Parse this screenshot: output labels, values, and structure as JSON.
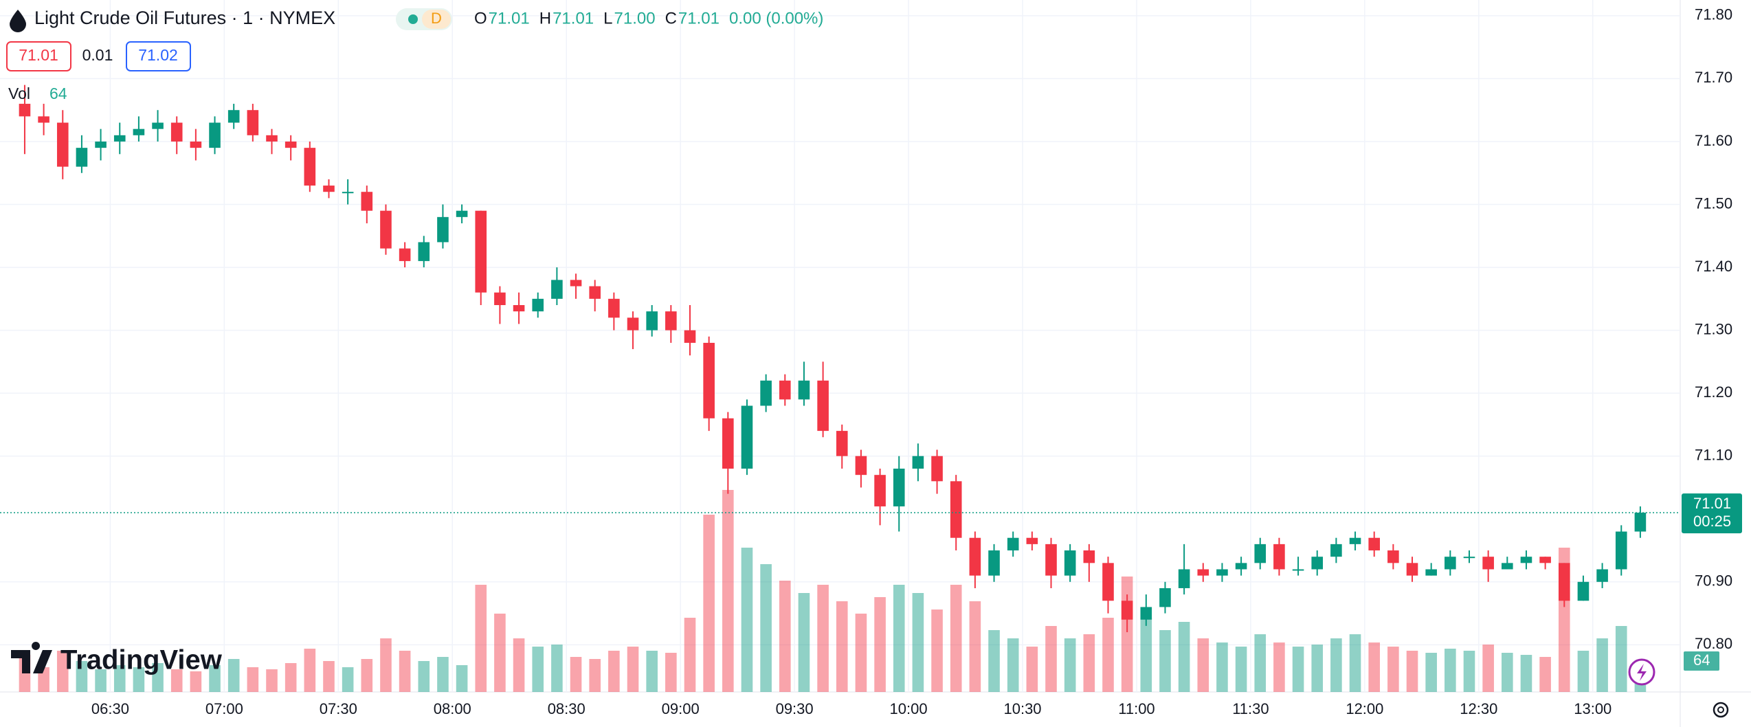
{
  "header": {
    "title": "Light Crude Oil Futures · 1 · NYMEX",
    "interval_badge": "D",
    "ohlc": [
      {
        "k": "O",
        "v": "71.01"
      },
      {
        "k": "H",
        "v": "71.01"
      },
      {
        "k": "L",
        "v": "71.00"
      },
      {
        "k": "C",
        "v": "71.01"
      }
    ],
    "change": "0.00 (0.00%)",
    "bid": "71.01",
    "spread": "0.01",
    "ask": "71.02"
  },
  "watermark": "TradingView",
  "chart_data": {
    "type": "candlestick",
    "up_color": "#089981",
    "down_color": "#f23645",
    "grid": true,
    "x": [
      "06:05",
      "06:10",
      "06:15",
      "06:20",
      "06:25",
      "06:30",
      "06:35",
      "06:40",
      "06:45",
      "06:50",
      "06:55",
      "07:00",
      "07:05",
      "07:10",
      "07:15",
      "07:20",
      "07:25",
      "07:30",
      "07:35",
      "07:40",
      "07:45",
      "07:50",
      "07:55",
      "08:00",
      "08:05",
      "08:10",
      "08:15",
      "08:20",
      "08:25",
      "08:30",
      "08:35",
      "08:40",
      "08:45",
      "08:50",
      "08:55",
      "09:00",
      "09:05",
      "09:10",
      "09:15",
      "09:20",
      "09:25",
      "09:30",
      "09:35",
      "09:40",
      "09:45",
      "09:50",
      "09:55",
      "10:00",
      "10:05",
      "10:10",
      "10:15",
      "10:20",
      "10:25",
      "10:30",
      "10:35",
      "10:40",
      "10:45",
      "10:50",
      "10:55",
      "11:00",
      "11:05",
      "11:10",
      "11:15",
      "11:20",
      "11:25",
      "11:30",
      "11:35",
      "11:40",
      "11:45",
      "11:50",
      "11:55",
      "12:00",
      "12:05",
      "12:10",
      "12:15",
      "12:20",
      "12:25",
      "12:30",
      "12:35",
      "12:40",
      "12:45",
      "12:50",
      "12:55",
      "13:00",
      "13:05",
      "13:10"
    ],
    "open": [
      71.66,
      71.64,
      71.63,
      71.56,
      71.59,
      71.6,
      71.61,
      71.62,
      71.63,
      71.6,
      71.59,
      71.63,
      71.65,
      71.61,
      71.6,
      71.59,
      71.53,
      71.52,
      71.52,
      71.49,
      71.43,
      71.41,
      71.44,
      71.48,
      71.49,
      71.36,
      71.34,
      71.33,
      71.35,
      71.38,
      71.37,
      71.35,
      71.32,
      71.3,
      71.33,
      71.3,
      71.28,
      71.16,
      71.08,
      71.18,
      71.22,
      71.19,
      71.22,
      71.14,
      71.1,
      71.07,
      71.02,
      71.08,
      71.1,
      71.06,
      70.97,
      70.91,
      70.95,
      70.97,
      70.96,
      70.91,
      70.95,
      70.93,
      70.87,
      70.84,
      70.86,
      70.89,
      70.92,
      70.91,
      70.92,
      70.93,
      70.96,
      70.92,
      70.92,
      70.94,
      70.96,
      70.97,
      70.95,
      70.93,
      70.91,
      70.92,
      70.94,
      70.94,
      70.92,
      70.93,
      70.94,
      70.93,
      70.87,
      70.9,
      70.92,
      70.98
    ],
    "high": [
      71.69,
      71.66,
      71.65,
      71.61,
      71.62,
      71.63,
      71.64,
      71.65,
      71.64,
      71.62,
      71.64,
      71.66,
      71.66,
      71.62,
      71.61,
      71.6,
      71.54,
      71.54,
      71.53,
      71.5,
      71.44,
      71.45,
      71.5,
      71.5,
      71.49,
      71.37,
      71.36,
      71.36,
      71.4,
      71.39,
      71.38,
      71.36,
      71.33,
      71.34,
      71.34,
      71.34,
      71.29,
      71.17,
      71.19,
      71.23,
      71.23,
      71.25,
      71.25,
      71.15,
      71.11,
      71.08,
      71.1,
      71.12,
      71.11,
      71.07,
      70.98,
      70.96,
      70.98,
      70.98,
      70.97,
      70.96,
      70.96,
      70.94,
      70.88,
      70.88,
      70.9,
      70.96,
      70.93,
      70.93,
      70.94,
      70.97,
      70.97,
      70.94,
      70.95,
      70.97,
      70.98,
      70.98,
      70.96,
      70.94,
      70.93,
      70.95,
      70.95,
      70.95,
      70.94,
      70.95,
      70.94,
      70.93,
      70.91,
      70.93,
      70.99,
      71.02
    ],
    "low": [
      71.58,
      71.61,
      71.54,
      71.55,
      71.57,
      71.58,
      71.6,
      71.6,
      71.58,
      71.57,
      71.58,
      71.62,
      71.6,
      71.58,
      71.57,
      71.52,
      71.51,
      71.5,
      71.47,
      71.42,
      71.4,
      71.4,
      71.43,
      71.47,
      71.34,
      71.31,
      71.31,
      71.32,
      71.34,
      71.35,
      71.33,
      71.3,
      71.27,
      71.29,
      71.28,
      71.26,
      71.14,
      71.04,
      71.07,
      71.17,
      71.18,
      71.18,
      71.13,
      71.08,
      71.05,
      70.99,
      70.98,
      71.06,
      71.04,
      70.95,
      70.89,
      70.9,
      70.94,
      70.95,
      70.89,
      70.9,
      70.9,
      70.85,
      70.82,
      70.83,
      70.85,
      70.88,
      70.9,
      70.9,
      70.91,
      70.92,
      70.91,
      70.91,
      70.91,
      70.93,
      70.95,
      70.94,
      70.92,
      70.9,
      70.91,
      70.91,
      70.93,
      70.9,
      70.92,
      70.92,
      70.92,
      70.86,
      70.87,
      70.89,
      70.91,
      70.97
    ],
    "close": [
      71.64,
      71.63,
      71.56,
      71.59,
      71.6,
      71.61,
      71.62,
      71.63,
      71.6,
      71.59,
      71.63,
      71.65,
      71.61,
      71.6,
      71.59,
      71.53,
      71.52,
      71.52,
      71.49,
      71.43,
      71.41,
      71.44,
      71.48,
      71.49,
      71.36,
      71.34,
      71.33,
      71.35,
      71.38,
      71.37,
      71.35,
      71.32,
      71.3,
      71.33,
      71.3,
      71.28,
      71.16,
      71.08,
      71.18,
      71.22,
      71.19,
      71.22,
      71.14,
      71.1,
      71.07,
      71.02,
      71.08,
      71.1,
      71.06,
      70.97,
      70.91,
      70.95,
      70.97,
      70.96,
      70.91,
      70.95,
      70.93,
      70.87,
      70.84,
      70.86,
      70.89,
      70.92,
      70.91,
      70.92,
      70.93,
      70.96,
      70.92,
      70.92,
      70.94,
      70.96,
      70.97,
      70.95,
      70.93,
      70.91,
      70.92,
      70.94,
      70.94,
      70.92,
      70.93,
      70.94,
      70.93,
      70.87,
      70.9,
      70.92,
      70.98,
      71.01
    ],
    "volume": [
      180,
      120,
      200,
      150,
      110,
      130,
      120,
      140,
      110,
      100,
      130,
      160,
      120,
      110,
      140,
      210,
      150,
      120,
      160,
      260,
      200,
      150,
      170,
      130,
      520,
      380,
      260,
      220,
      230,
      170,
      160,
      200,
      220,
      200,
      190,
      360,
      860,
      980,
      700,
      620,
      540,
      480,
      520,
      440,
      380,
      460,
      520,
      480,
      400,
      520,
      440,
      300,
      260,
      220,
      320,
      260,
      280,
      360,
      560,
      360,
      300,
      340,
      260,
      240,
      220,
      280,
      240,
      220,
      230,
      260,
      280,
      240,
      220,
      200,
      190,
      210,
      200,
      230,
      190,
      180,
      170,
      700,
      200,
      260,
      320,
      64
    ],
    "vol_label": "Vol",
    "vlim": [
      0,
      1000
    ],
    "countdown": "00:25",
    "xlim": [
      "06:01",
      "13:23"
    ],
    "xticks": [
      "06:30",
      "07:00",
      "07:30",
      "08:00",
      "08:30",
      "09:00",
      "09:30",
      "10:00",
      "10:30",
      "11:00",
      "11:30",
      "12:00",
      "12:30",
      "13:00"
    ],
    "ylim": [
      70.725,
      71.825
    ],
    "yticks": [
      {
        "value": 70.8,
        "label": "70.80"
      },
      {
        "value": 70.9,
        "label": "70.90"
      },
      {
        "value": 71.1,
        "label": "71.10"
      },
      {
        "value": 71.2,
        "label": "71.20"
      },
      {
        "value": 71.3,
        "label": "71.30"
      },
      {
        "value": 71.4,
        "label": "71.40"
      },
      {
        "value": 71.5,
        "label": "71.50"
      },
      {
        "value": 71.6,
        "label": "71.60"
      },
      {
        "value": 71.7,
        "label": "71.70"
      },
      {
        "value": 71.8,
        "label": "71.80"
      }
    ]
  }
}
